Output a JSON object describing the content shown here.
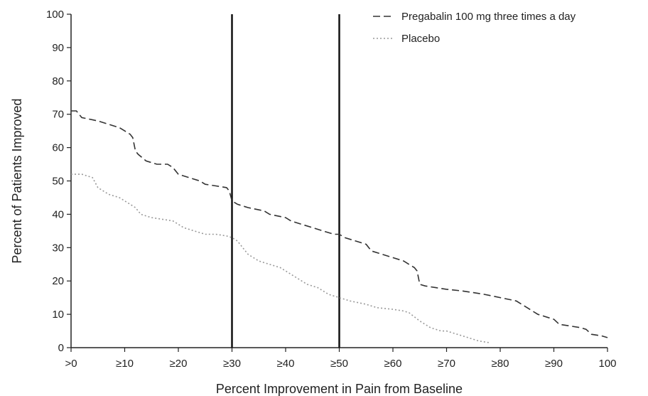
{
  "chart_data": {
    "type": "line",
    "xlabel": "Percent Improvement in Pain from Baseline",
    "ylabel": "Percent of Patients Improved",
    "xlim": [
      0,
      100
    ],
    "ylim": [
      0,
      100
    ],
    "x_tick_values": [
      0,
      10,
      20,
      30,
      40,
      50,
      60,
      70,
      80,
      90,
      100
    ],
    "x_tick_labels": [
      ">0",
      "≥10",
      "≥20",
      "≥30",
      "≥40",
      "≥50",
      "≥60",
      "≥70",
      "≥80",
      "≥90",
      "100"
    ],
    "y_tick_values": [
      0,
      10,
      20,
      30,
      40,
      50,
      60,
      70,
      80,
      90,
      100
    ],
    "y_tick_labels": [
      "0",
      "10",
      "20",
      "30",
      "40",
      "50",
      "60",
      "70",
      "80",
      "90",
      "100"
    ],
    "reference_lines_x": [
      30,
      50
    ],
    "grid": false,
    "legend_position": "top-right",
    "series": [
      {
        "name": "Pregabalin 100 mg three times a day",
        "color": "#333333",
        "dash": "dashed",
        "x": [
          0,
          1,
          2,
          5,
          7,
          9,
          10,
          11,
          11.5,
          12,
          12.5,
          14,
          16,
          18,
          19,
          20,
          22,
          24,
          25,
          27,
          29,
          29.5,
          30,
          31,
          33,
          36,
          37,
          40,
          41,
          43,
          45,
          47,
          49,
          50,
          51,
          53,
          55,
          56,
          58,
          60,
          62,
          63,
          64,
          64.5,
          65,
          66,
          68,
          70,
          73,
          75,
          77,
          80,
          83,
          84,
          85,
          86,
          87,
          88,
          89,
          90,
          91,
          93,
          95,
          96,
          97,
          99,
          100
        ],
        "y": [
          71,
          71,
          69,
          68,
          67,
          66,
          65,
          64,
          63,
          59,
          58,
          56,
          55,
          55,
          54,
          52,
          51,
          50,
          49,
          48.5,
          48,
          47,
          44,
          43,
          42,
          41,
          40,
          39,
          38,
          37,
          36,
          35,
          34,
          34,
          33,
          32,
          31,
          29,
          28,
          27,
          26,
          25,
          24,
          23,
          19,
          18.5,
          18,
          17.5,
          17,
          16.5,
          16,
          15,
          14,
          13,
          12,
          11,
          10,
          9.5,
          9,
          8.5,
          7,
          6.5,
          6,
          5.5,
          4,
          3.5,
          3
        ]
      },
      {
        "name": "Placebo",
        "color": "#999999",
        "dash": "dotted",
        "x": [
          0,
          2,
          4,
          5,
          7,
          9,
          10,
          11,
          12,
          13,
          15,
          17,
          19,
          20,
          21,
          23,
          25,
          27,
          29,
          30,
          31,
          32,
          33,
          35,
          37,
          39,
          40,
          42,
          44,
          46,
          48,
          50,
          52,
          55,
          57,
          60,
          62,
          63,
          65,
          67,
          69,
          70,
          72,
          74,
          76,
          78
        ],
        "y": [
          52,
          52,
          51,
          48,
          46,
          45,
          44,
          43,
          42,
          40,
          39,
          38.5,
          38,
          37,
          36,
          35,
          34,
          34,
          33.5,
          33,
          32,
          30,
          28,
          26,
          25,
          24,
          23,
          21,
          19,
          18,
          16,
          15,
          14,
          13,
          12,
          11.5,
          11,
          10.5,
          8,
          6,
          5,
          5,
          4,
          3,
          2,
          1.5
        ]
      }
    ]
  }
}
